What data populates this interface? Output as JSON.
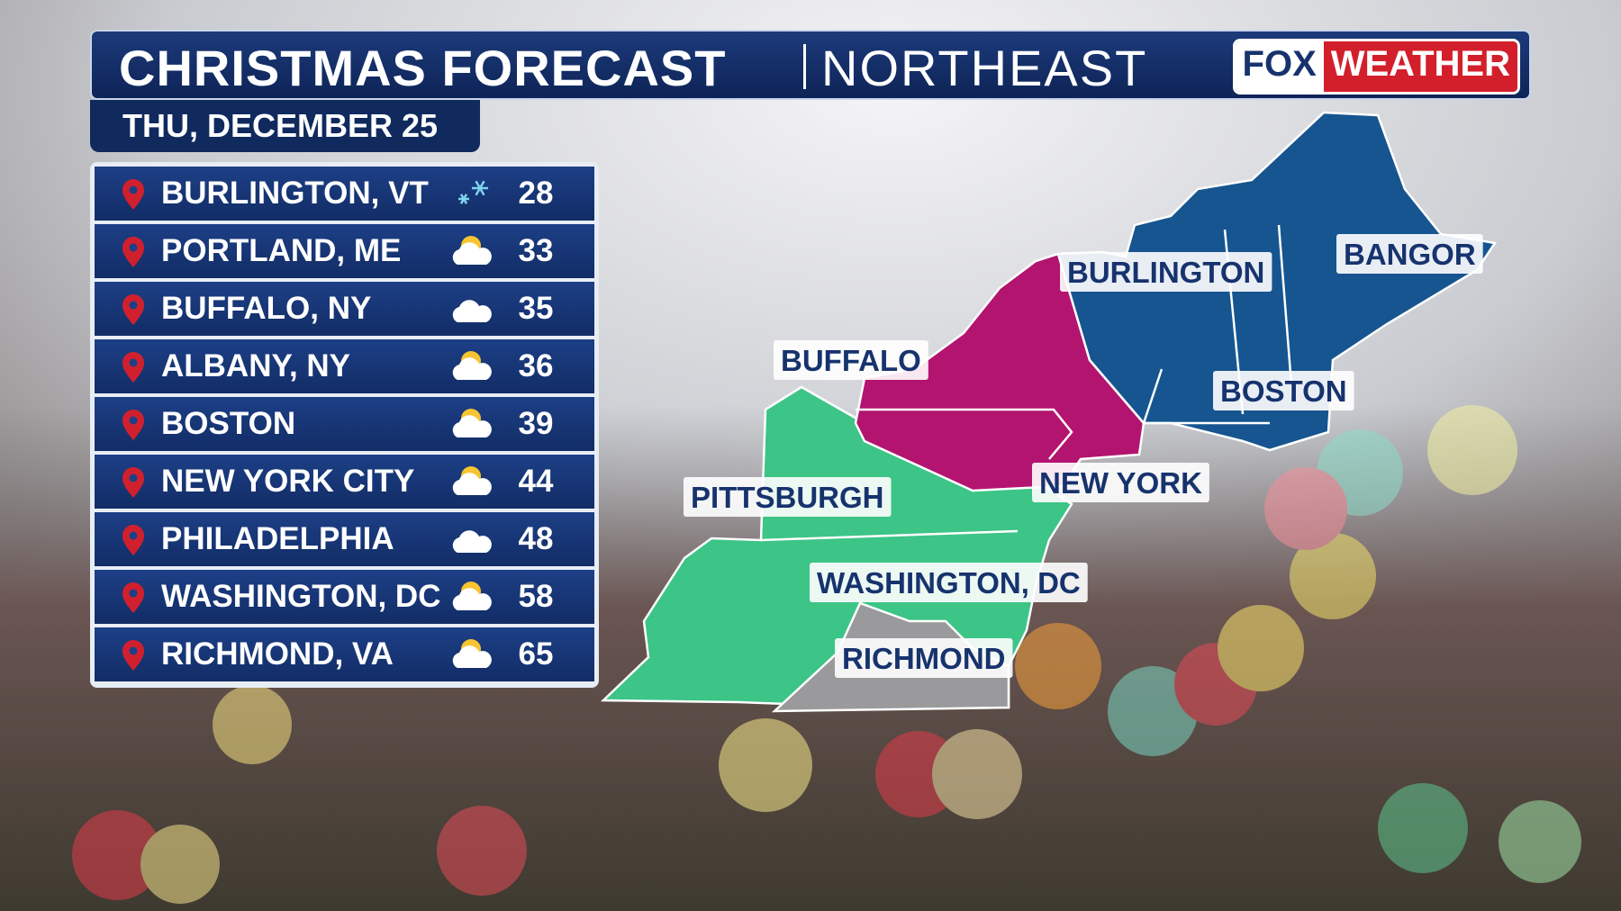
{
  "header": {
    "title": "CHRISTMAS FORECAST",
    "region": "NORTHEAST",
    "logo_fox": "FOX",
    "logo_weather": "WEATHER",
    "date": "THU, DECEMBER 25"
  },
  "table": {
    "rows": [
      [
        "BURLINGTON, VT",
        "28"
      ],
      [
        "PORTLAND, ME",
        "33"
      ],
      [
        "BUFFALO, NY",
        "35"
      ],
      [
        "ALBANY, NY",
        "36"
      ],
      [
        "BOSTON",
        "39"
      ],
      [
        "NEW YORK CITY",
        "44"
      ],
      [
        "PHILADELPHIA",
        "48"
      ],
      [
        "WASHINGTON, DC",
        "58"
      ],
      [
        "RICHMOND, VA",
        "65"
      ]
    ]
  },
  "map": {
    "labels": [
      "BURLINGTON",
      "BANGOR",
      "BUFFALO",
      "BOSTON",
      "NEW YORK",
      "PITTSBURGH",
      "WASHINGTON, DC",
      "RICHMOND"
    ]
  }
}
